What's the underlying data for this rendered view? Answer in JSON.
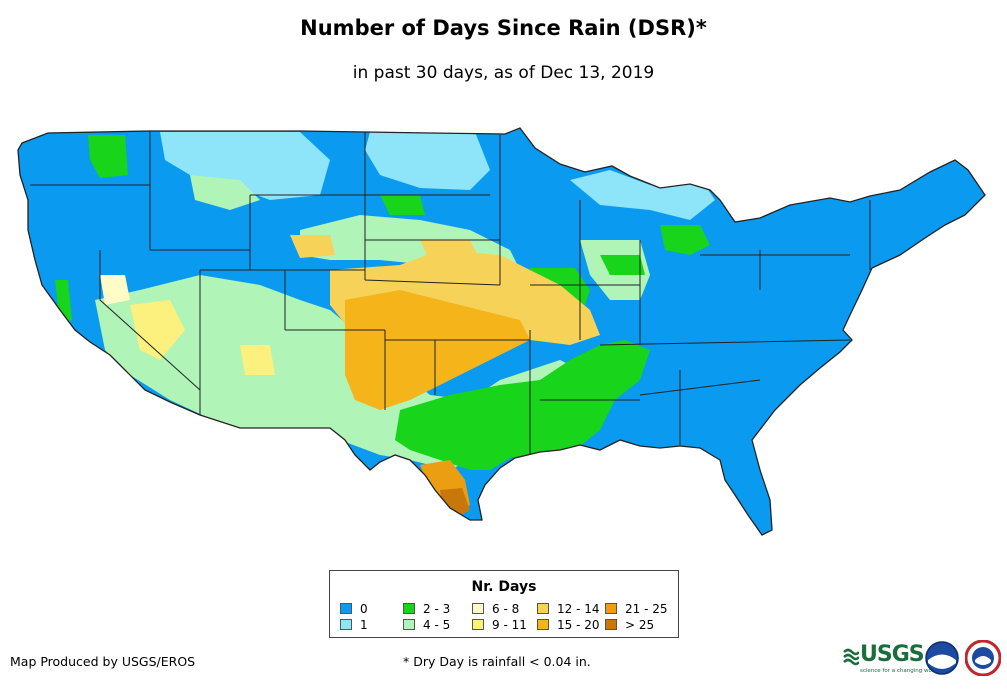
{
  "title": "Number of Days Since Rain (DSR)*",
  "subtitle": "in past 30 days, as of Dec 13, 2019",
  "legend": {
    "title": "Nr. Days",
    "items": [
      {
        "label": "0",
        "color": "#0a9bf0"
      },
      {
        "label": "1",
        "color": "#8ee4f8"
      },
      {
        "label": "2 - 3",
        "color": "#18d41a"
      },
      {
        "label": "4 - 5",
        "color": "#b0f4b8"
      },
      {
        "label": "6 - 8",
        "color": "#fffcc8"
      },
      {
        "label": "9 - 11",
        "color": "#fcf07e"
      },
      {
        "label": "12 - 14",
        "color": "#f6d258"
      },
      {
        "label": "15 - 20",
        "color": "#f4b41a"
      },
      {
        "label": "21 - 25",
        "color": "#ec9e12"
      },
      {
        "label": "> 25",
        "color": "#c8780a"
      }
    ]
  },
  "credit": "Map Produced by USGS/EROS",
  "footnote": "* Dry Day is rainfall < 0.04 in.",
  "logos": {
    "usgs": "USGS",
    "usgs_tagline": "science for a changing world",
    "noaa_icon": "noaa-logo-icon",
    "nws_icon": "nws-logo-icon"
  }
}
